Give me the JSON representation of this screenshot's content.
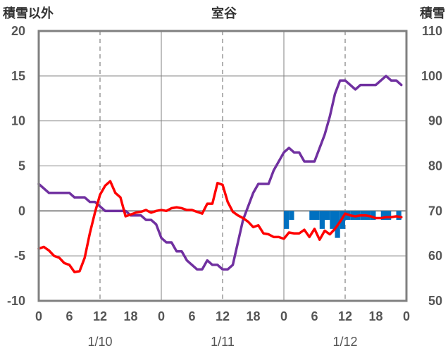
{
  "chart_data": {
    "type": "line",
    "title": "室谷",
    "left_axis_label": "積雪以外",
    "right_axis_label": "積雪",
    "ylim_left": [
      -10,
      20
    ],
    "ylim_right": [
      50,
      110
    ],
    "left_ticks": [
      20,
      15,
      10,
      5,
      0,
      -5,
      -10
    ],
    "right_ticks": [
      110,
      100,
      90,
      80,
      70,
      60,
      50
    ],
    "x_range_hours": [
      0,
      72
    ],
    "x_tick_hours": [
      0,
      6,
      12,
      18,
      24,
      30,
      36,
      42,
      48,
      54,
      60,
      66,
      72
    ],
    "x_tick_labels": [
      "0",
      "6",
      "12",
      "18",
      "0",
      "6",
      "12",
      "18",
      "0",
      "6",
      "12",
      "18",
      "0"
    ],
    "date_labels": [
      {
        "label": "1/10",
        "hour": 12
      },
      {
        "label": "1/11",
        "hour": 36
      },
      {
        "label": "1/12",
        "hour": 60
      }
    ],
    "day_boundaries": [
      24,
      48
    ],
    "dashed_gridlines_hours": [
      12,
      36,
      60
    ],
    "grid": true,
    "series": [
      {
        "color": "#7030A0",
        "axis": "left",
        "points": [
          [
            0,
            3.0
          ],
          [
            1,
            2.5
          ],
          [
            2,
            2.0
          ],
          [
            3,
            2.0
          ],
          [
            4,
            2.0
          ],
          [
            5,
            2.0
          ],
          [
            6,
            2.0
          ],
          [
            7,
            1.5
          ],
          [
            8,
            1.5
          ],
          [
            9,
            1.5
          ],
          [
            10,
            1.0
          ],
          [
            11,
            1.0
          ],
          [
            12,
            0.5
          ],
          [
            13,
            0.0
          ],
          [
            14,
            0.0
          ],
          [
            15,
            0.0
          ],
          [
            16,
            0.0
          ],
          [
            17,
            0.0
          ],
          [
            18,
            -0.5
          ],
          [
            19,
            -0.5
          ],
          [
            20,
            -0.5
          ],
          [
            21,
            -1.0
          ],
          [
            22,
            -1.0
          ],
          [
            23,
            -1.5
          ],
          [
            24,
            -3.0
          ],
          [
            25,
            -3.5
          ],
          [
            26,
            -3.5
          ],
          [
            27,
            -4.5
          ],
          [
            28,
            -4.5
          ],
          [
            29,
            -5.5
          ],
          [
            30,
            -6.0
          ],
          [
            31,
            -6.5
          ],
          [
            32,
            -6.5
          ],
          [
            33,
            -5.5
          ],
          [
            34,
            -6.0
          ],
          [
            35,
            -6.0
          ],
          [
            36,
            -6.5
          ],
          [
            37,
            -6.5
          ],
          [
            38,
            -6.0
          ],
          [
            39,
            -3.5
          ],
          [
            40,
            -1.0
          ],
          [
            41,
            0.5
          ],
          [
            42,
            2.0
          ],
          [
            43,
            3.0
          ],
          [
            44,
            3.0
          ],
          [
            45,
            3.0
          ],
          [
            46,
            4.5
          ],
          [
            47,
            5.5
          ],
          [
            48,
            6.5
          ],
          [
            49,
            7.0
          ],
          [
            50,
            6.5
          ],
          [
            51,
            6.5
          ],
          [
            52,
            5.5
          ],
          [
            53,
            5.5
          ],
          [
            54,
            5.5
          ],
          [
            55,
            7.0
          ],
          [
            56,
            8.5
          ],
          [
            57,
            10.5
          ],
          [
            58,
            13.0
          ],
          [
            59,
            14.5
          ],
          [
            60,
            14.5
          ],
          [
            61,
            14.0
          ],
          [
            62,
            13.5
          ],
          [
            63,
            14.0
          ],
          [
            64,
            14.0
          ],
          [
            65,
            14.0
          ],
          [
            66,
            14.0
          ],
          [
            67,
            14.5
          ],
          [
            68,
            15.0
          ],
          [
            69,
            14.5
          ],
          [
            70,
            14.5
          ],
          [
            71,
            14.0
          ]
        ]
      },
      {
        "color": "#FF0000",
        "axis": "left",
        "points": [
          [
            0,
            -4.2
          ],
          [
            1,
            -4.0
          ],
          [
            2,
            -4.4
          ],
          [
            3,
            -5.0
          ],
          [
            4,
            -5.2
          ],
          [
            5,
            -5.8
          ],
          [
            6,
            -6.0
          ],
          [
            7,
            -6.8
          ],
          [
            8,
            -6.7
          ],
          [
            9,
            -5.2
          ],
          [
            10,
            -2.5
          ],
          [
            11,
            -0.2
          ],
          [
            12,
            1.8
          ],
          [
            13,
            2.8
          ],
          [
            14,
            3.3
          ],
          [
            15,
            2.0
          ],
          [
            16,
            1.5
          ],
          [
            17,
            -0.6
          ],
          [
            18,
            -0.4
          ],
          [
            19,
            -0.2
          ],
          [
            20,
            -0.1
          ],
          [
            21,
            0.1
          ],
          [
            22,
            -0.2
          ],
          [
            23,
            0.0
          ],
          [
            24,
            0.1
          ],
          [
            25,
            0.0
          ],
          [
            26,
            0.3
          ],
          [
            27,
            0.4
          ],
          [
            28,
            0.3
          ],
          [
            29,
            0.1
          ],
          [
            30,
            0.1
          ],
          [
            31,
            -0.1
          ],
          [
            32,
            -0.3
          ],
          [
            33,
            0.8
          ],
          [
            34,
            0.8
          ],
          [
            35,
            3.1
          ],
          [
            36,
            2.9
          ],
          [
            37,
            1.0
          ],
          [
            38,
            -0.1
          ],
          [
            39,
            -0.5
          ],
          [
            40,
            -0.8
          ],
          [
            41,
            -1.2
          ],
          [
            42,
            -1.8
          ],
          [
            43,
            -1.6
          ],
          [
            44,
            -2.5
          ],
          [
            45,
            -2.6
          ],
          [
            46,
            -2.9
          ],
          [
            47,
            -2.9
          ],
          [
            48,
            -3.1
          ],
          [
            49,
            -2.4
          ],
          [
            50,
            -2.5
          ],
          [
            51,
            -2.5
          ],
          [
            52,
            -2.1
          ],
          [
            53,
            -2.9
          ],
          [
            54,
            -2.0
          ],
          [
            55,
            -3.2
          ],
          [
            56,
            -2.2
          ],
          [
            57,
            -2.6
          ],
          [
            58,
            -2.0
          ],
          [
            59,
            -1.2
          ],
          [
            60,
            -0.3
          ],
          [
            61,
            -0.5
          ],
          [
            62,
            -0.6
          ],
          [
            63,
            -0.5
          ],
          [
            64,
            -0.5
          ],
          [
            65,
            -0.6
          ],
          [
            66,
            -0.8
          ],
          [
            67,
            -0.8
          ],
          [
            68,
            -0.7
          ],
          [
            69,
            -0.7
          ],
          [
            70,
            -0.6
          ],
          [
            71,
            -0.7
          ]
        ]
      }
    ],
    "bars": {
      "color": "#0070C0",
      "baseline": 0,
      "values": [
        {
          "hour": 48,
          "value": -2.0
        },
        {
          "hour": 49,
          "value": -1.0
        },
        {
          "hour": 53,
          "value": -1.0
        },
        {
          "hour": 54,
          "value": -1.0
        },
        {
          "hour": 55,
          "value": -2.0
        },
        {
          "hour": 56,
          "value": -1.0
        },
        {
          "hour": 57,
          "value": -2.0
        },
        {
          "hour": 58,
          "value": -3.0
        },
        {
          "hour": 59,
          "value": -2.0
        },
        {
          "hour": 60,
          "value": -1.0
        },
        {
          "hour": 61,
          "value": -1.0
        },
        {
          "hour": 62,
          "value": -1.0
        },
        {
          "hour": 63,
          "value": -1.0
        },
        {
          "hour": 64,
          "value": -1.0
        },
        {
          "hour": 65,
          "value": -1.0
        },
        {
          "hour": 67,
          "value": -1.0
        },
        {
          "hour": 68,
          "value": -1.0
        },
        {
          "hour": 70,
          "value": -1.0
        }
      ]
    }
  },
  "colors": {
    "frame": "#808080",
    "grid": "#808080",
    "zero_line": "#808080"
  }
}
